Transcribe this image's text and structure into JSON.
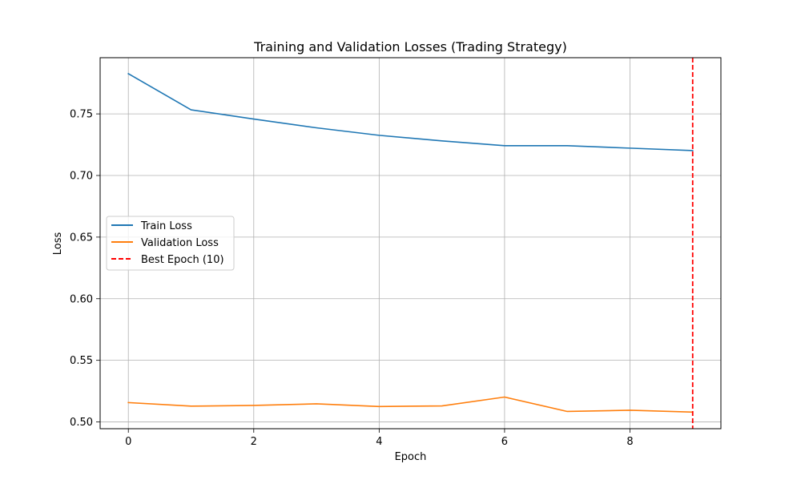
{
  "chart_data": {
    "type": "line",
    "title": "Training and Validation Losses (Trading Strategy)",
    "xlabel": "Epoch",
    "ylabel": "Loss",
    "x": [
      0,
      1,
      2,
      3,
      4,
      5,
      6,
      7,
      8,
      9
    ],
    "xlim": [
      -0.45,
      9.45
    ],
    "ylim": [
      0.4945,
      0.7956
    ],
    "xticks": [
      0,
      2,
      4,
      6,
      8
    ],
    "xtick_labels": [
      "0",
      "2",
      "4",
      "6",
      "8"
    ],
    "yticks": [
      0.5,
      0.55,
      0.6,
      0.65,
      0.7,
      0.75
    ],
    "ytick_labels": [
      "0.50",
      "0.55",
      "0.60",
      "0.65",
      "0.70",
      "0.75"
    ],
    "grid": true,
    "legend_position": "center-left",
    "series": [
      {
        "name": "Train Loss",
        "color": "#1f77b4",
        "style": "solid",
        "values": [
          0.7826,
          0.7533,
          0.7458,
          0.7387,
          0.7326,
          0.7281,
          0.7242,
          0.7242,
          0.7222,
          0.7202
        ]
      },
      {
        "name": "Validation Loss",
        "color": "#ff7f0e",
        "style": "solid",
        "values": [
          0.5157,
          0.5128,
          0.5134,
          0.5147,
          0.5125,
          0.513,
          0.5202,
          0.5085,
          0.5095,
          0.508
        ]
      }
    ],
    "vlines": [
      {
        "name": "Best Epoch (10)",
        "x": 9,
        "color": "#ff0000",
        "style": "dashed"
      }
    ]
  }
}
